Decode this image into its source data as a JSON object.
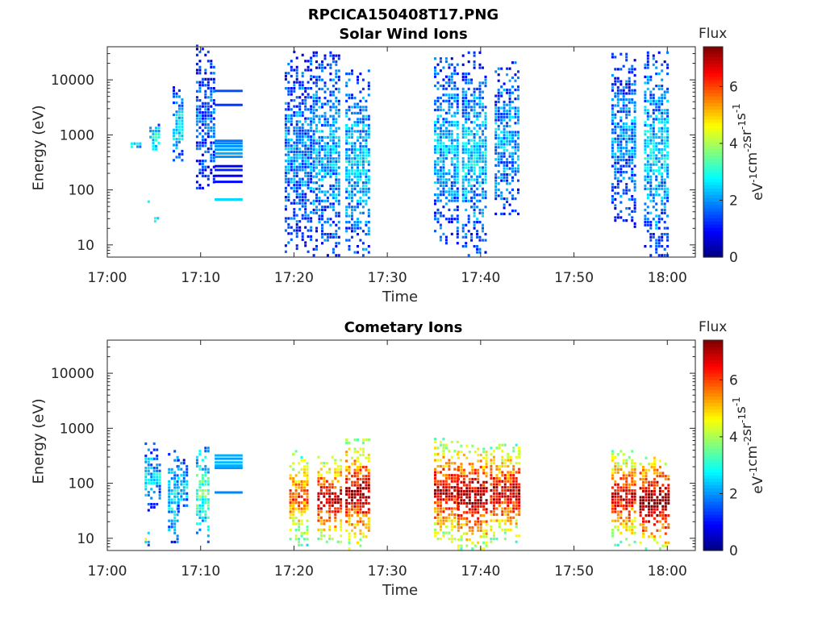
{
  "figure_title": "RPCICA150408T17.PNG",
  "colors": {
    "axis": "#262626",
    "colormap": "jet"
  },
  "chart_data": [
    {
      "type": "heatmap",
      "title": "Solar Wind Ions",
      "xlabel": "Time",
      "ylabel": "Energy (eV)",
      "x_ticks": [
        "17:00",
        "17:10",
        "17:20",
        "17:30",
        "17:40",
        "17:50",
        "18:00"
      ],
      "xlim": [
        "17:00",
        "18:03"
      ],
      "y_scale": "log",
      "y_ticks": [
        "10",
        "100",
        "1000",
        "10000"
      ],
      "ylim": [
        6,
        40000
      ],
      "colorbar": {
        "title": "Flux",
        "label": "eV-1cm-2sr-1s-1",
        "ticks": [
          "0",
          "2",
          "4",
          "6"
        ],
        "range": [
          0,
          7.4
        ]
      },
      "bursts": [
        {
          "start": "17:02.5",
          "end": "17:03.5",
          "e_min": 500,
          "e_max": 800,
          "flux": 2.4
        },
        {
          "start": "17:04",
          "end": "17:04.5",
          "e_min": 50,
          "e_max": 70,
          "flux": 2.6
        },
        {
          "start": "17:04.5",
          "end": "17:05.5",
          "e_min": 450,
          "e_max": 1500,
          "flux": 2.5
        },
        {
          "start": "17:05",
          "end": "17:05.5",
          "e_min": 22,
          "e_max": 30,
          "flux": 2.8
        },
        {
          "start": "17:07",
          "end": "17:08",
          "e_min": 250,
          "e_max": 7000,
          "flux": 2.2
        },
        {
          "start": "17:09.5",
          "end": "17:11.5",
          "e_min": 100,
          "e_max": 40000,
          "flux": 1.3
        },
        {
          "start": "17:19",
          "end": "17:22",
          "e_min": 7,
          "e_max": 30000,
          "flux": 1.6
        },
        {
          "start": "17:22",
          "end": "17:25",
          "e_min": 6,
          "e_max": 30000,
          "flux": 1.8
        },
        {
          "start": "17:25.5",
          "end": "17:28",
          "e_min": 6,
          "e_max": 15000,
          "flux": 2.0
        },
        {
          "start": "17:35",
          "end": "17:37.5",
          "e_min": 10,
          "e_max": 25000,
          "flux": 1.9
        },
        {
          "start": "17:38",
          "end": "17:40.5",
          "e_min": 6,
          "e_max": 30000,
          "flux": 2.0
        },
        {
          "start": "17:41.5",
          "end": "17:44",
          "e_min": 30,
          "e_max": 20000,
          "flux": 1.8
        },
        {
          "start": "17:54",
          "end": "17:56.5",
          "e_min": 20,
          "e_max": 30000,
          "flux": 1.7
        },
        {
          "start": "17:57.5",
          "end": "18:00",
          "e_min": 6,
          "e_max": 30000,
          "flux": 2.0
        }
      ],
      "lines": [
        {
          "start": "17:11.5",
          "end": "17:14.5",
          "energy": 6300,
          "flux": 1.5
        },
        {
          "start": "17:11.5",
          "end": "17:14.5",
          "energy": 3500,
          "flux": 1.3
        },
        {
          "start": "17:11.5",
          "end": "17:14.5",
          "energy": 780,
          "flux": 1.8
        },
        {
          "start": "17:11.5",
          "end": "17:14.5",
          "energy": 700,
          "flux": 1.9
        },
        {
          "start": "17:11.5",
          "end": "17:14.5",
          "energy": 620,
          "flux": 2.0
        },
        {
          "start": "17:11.5",
          "end": "17:14.5",
          "energy": 540,
          "flux": 2.1
        },
        {
          "start": "17:11.5",
          "end": "17:14.5",
          "energy": 460,
          "flux": 2.2
        },
        {
          "start": "17:11.5",
          "end": "17:14.5",
          "energy": 400,
          "flux": 2.0
        },
        {
          "start": "17:11.5",
          "end": "17:14.5",
          "energy": 270,
          "flux": 0.8
        },
        {
          "start": "17:11.5",
          "end": "17:14.5",
          "energy": 230,
          "flux": 1.2
        },
        {
          "start": "17:11.5",
          "end": "17:14.5",
          "energy": 180,
          "flux": 0.8
        },
        {
          "start": "17:11.5",
          "end": "17:14.5",
          "energy": 140,
          "flux": 1.0
        },
        {
          "start": "17:11.5",
          "end": "17:14.5",
          "energy": 67,
          "flux": 2.5
        }
      ]
    },
    {
      "type": "heatmap",
      "title": "Cometary Ions",
      "xlabel": "Time",
      "ylabel": "Energy (eV)",
      "x_ticks": [
        "17:00",
        "17:10",
        "17:20",
        "17:30",
        "17:40",
        "17:50",
        "18:00"
      ],
      "xlim": [
        "17:00",
        "18:03"
      ],
      "y_scale": "log",
      "y_ticks": [
        "10",
        "100",
        "1000",
        "10000"
      ],
      "ylim": [
        6,
        40000
      ],
      "colorbar": {
        "title": "Flux",
        "label": "eV-1cm-2sr-1s-1",
        "ticks": [
          "0",
          "2",
          "4",
          "6"
        ],
        "range": [
          0,
          7.4
        ]
      },
      "bursts": [
        {
          "start": "17:04",
          "end": "17:05.5",
          "e_min": 30,
          "e_max": 500,
          "flux": 2.0
        },
        {
          "start": "17:04",
          "end": "17:04.5",
          "e_min": 7,
          "e_max": 12,
          "flux": 3.2
        },
        {
          "start": "17:06.5",
          "end": "17:07.5",
          "e_min": 7,
          "e_max": 400,
          "flux": 2.2
        },
        {
          "start": "17:07.5",
          "end": "17:08.5",
          "e_min": 25,
          "e_max": 250,
          "flux": 2.0
        },
        {
          "start": "17:09.5",
          "end": "17:11",
          "e_min": 8,
          "e_max": 500,
          "flux": 2.8
        },
        {
          "start": "17:19.5",
          "end": "17:21.5",
          "e_min": 7,
          "e_max": 400,
          "flux": 4.8
        },
        {
          "start": "17:22.5",
          "end": "17:25",
          "e_min": 8,
          "e_max": 300,
          "flux": 5.6
        },
        {
          "start": "17:25.5",
          "end": "17:28",
          "e_min": 6,
          "e_max": 600,
          "flux": 5.8
        },
        {
          "start": "17:35",
          "end": "17:37.5",
          "e_min": 8,
          "e_max": 600,
          "flux": 5.6
        },
        {
          "start": "17:37.5",
          "end": "17:40.5",
          "e_min": 6,
          "e_max": 500,
          "flux": 5.9
        },
        {
          "start": "17:41",
          "end": "17:44",
          "e_min": 8,
          "e_max": 500,
          "flux": 5.5
        },
        {
          "start": "17:54",
          "end": "17:56.5",
          "e_min": 7,
          "e_max": 400,
          "flux": 5.4
        },
        {
          "start": "17:57",
          "end": "18:00",
          "e_min": 6,
          "e_max": 300,
          "flux": 6.2
        }
      ],
      "lines": [
        {
          "start": "17:11.5",
          "end": "17:14.5",
          "energy": 320,
          "flux": 2.2
        },
        {
          "start": "17:11.5",
          "end": "17:14.5",
          "energy": 280,
          "flux": 2.1
        },
        {
          "start": "17:11.5",
          "end": "17:14.5",
          "energy": 240,
          "flux": 2.3
        },
        {
          "start": "17:11.5",
          "end": "17:14.5",
          "energy": 210,
          "flux": 2.2
        },
        {
          "start": "17:11.5",
          "end": "17:14.5",
          "energy": 190,
          "flux": 2.0
        },
        {
          "start": "17:11.5",
          "end": "17:14.5",
          "energy": 68,
          "flux": 1.9
        }
      ]
    }
  ]
}
